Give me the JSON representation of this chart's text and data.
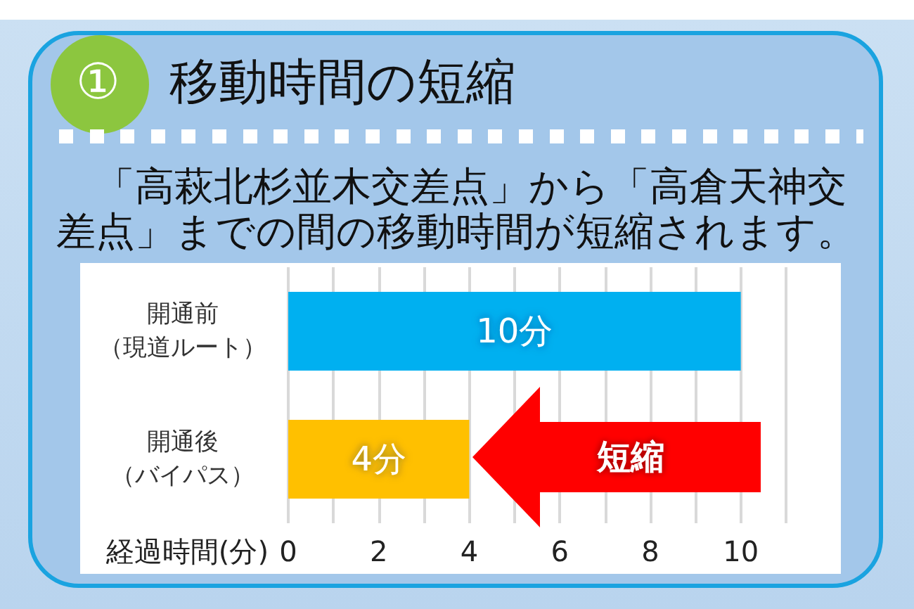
{
  "chart_data": {
    "type": "bar",
    "orientation": "horizontal",
    "title": "① 移動時間の短縮",
    "subtitle": "「高萩北杉並木交差点」から「高倉天神交差点」までの間の移動時間が短縮されます。",
    "categories": [
      "開通前（現道ルート）",
      "開通後（バイパス）"
    ],
    "values": [
      10,
      4
    ],
    "colors": [
      "#00b0f0",
      "#ffc000"
    ],
    "value_labels": [
      "10分",
      "4分"
    ],
    "xlabel": "経過時間(分)",
    "xlim": [
      0,
      11
    ],
    "xticks": [
      0,
      {
        "value": 1,
        "label": null
      },
      2,
      {
        "value": 3,
        "label": null
      },
      4,
      {
        "value": 5,
        "label": null
      },
      6,
      {
        "value": 7,
        "label": null
      },
      8,
      {
        "value": 9,
        "label": null
      },
      10,
      {
        "value": 11,
        "label": null
      }
    ],
    "grid": "x",
    "annotations": [
      "短縮"
    ]
  }
}
